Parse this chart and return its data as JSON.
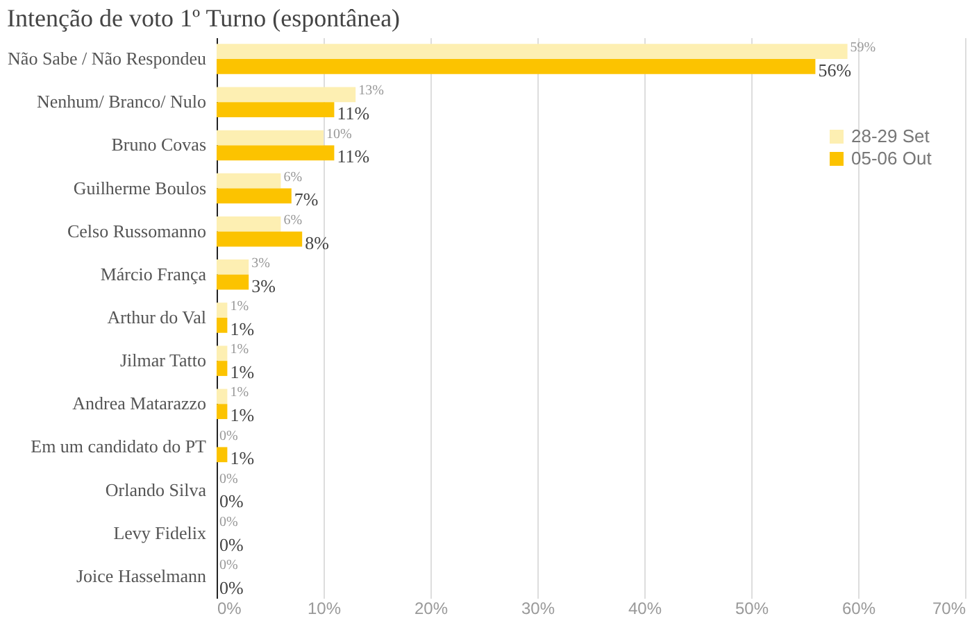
{
  "chart_data": {
    "type": "bar",
    "orientation": "horizontal",
    "title": "Intenção de voto 1º Turno (espontânea)",
    "categories": [
      "Não Sabe / Não Respondeu",
      "Nenhum/ Branco/ Nulo",
      "Bruno Covas",
      "Guilherme Boulos",
      "Celso Russomanno",
      "Márcio França",
      "Arthur do Val",
      "Jilmar Tatto",
      "Andrea Matarazzo",
      "Em um candidato do PT",
      "Orlando Silva",
      "Levy Fidelix",
      "Joice Hasselmann"
    ],
    "series": [
      {
        "name": "28-29 Set",
        "color": "#fdefb2",
        "values": [
          59,
          13,
          10,
          6,
          6,
          3,
          1,
          1,
          1,
          0,
          0,
          0,
          0
        ],
        "value_labels": [
          "59%",
          "13%",
          "10%",
          "6%",
          "6%",
          "3%",
          "1%",
          "1%",
          "1%",
          "0%",
          "0%",
          "0%",
          "0%"
        ]
      },
      {
        "name": "05-06 Out",
        "color": "#fcc300",
        "values": [
          56,
          11,
          11,
          7,
          8,
          3,
          1,
          1,
          1,
          1,
          0,
          0,
          0
        ],
        "value_labels": [
          "56%",
          "11%",
          "11%",
          "7%",
          "8%",
          "3%",
          "1%",
          "1%",
          "1%",
          "1%",
          "0%",
          "0%",
          "0%"
        ]
      }
    ],
    "xlim": [
      0,
      70
    ],
    "xticks": [
      {
        "value": 0,
        "label": "0%"
      },
      {
        "value": 10,
        "label": "10%"
      },
      {
        "value": 20,
        "label": "20%"
      },
      {
        "value": 30,
        "label": "30%"
      },
      {
        "value": 40,
        "label": "40%"
      },
      {
        "value": 50,
        "label": "50%"
      },
      {
        "value": 60,
        "label": "60%"
      },
      {
        "value": 70,
        "label": "70%"
      }
    ],
    "grid": "x",
    "legend": "top right"
  }
}
